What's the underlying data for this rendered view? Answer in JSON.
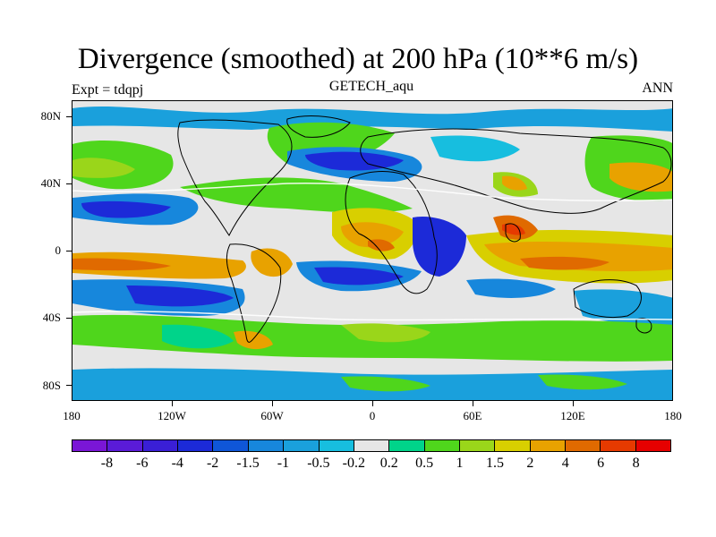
{
  "title": "Divergence (smoothed) at 200 hPa (10**6 m/s)",
  "subtitle": "GETECH_aqu",
  "left_label": "Expt = tdqpj",
  "right_label": "ANN",
  "y_ticks": [
    "80N",
    "40N",
    "0",
    "40S",
    "80S"
  ],
  "x_ticks": [
    "180",
    "120W",
    "60W",
    "0",
    "60E",
    "120E",
    "180"
  ],
  "colorbar": {
    "colors": [
      "#7a16d6",
      "#5a1bd8",
      "#3a1fd6",
      "#1c2ad8",
      "#0f56d8",
      "#1787dc",
      "#1aa0dc",
      "#17bedf",
      "#e6e6e6",
      "#00d48a",
      "#4fd61c",
      "#9ad61a",
      "#d8cf00",
      "#e8a200",
      "#e06a00",
      "#e63a00",
      "#e60000"
    ],
    "labels": [
      "-8",
      "-6",
      "-4",
      "-2",
      "-1.5",
      "-1",
      "-0.5",
      "-0.2",
      "0.2",
      "0.5",
      "1",
      "1.5",
      "2",
      "4",
      "6",
      "8"
    ]
  }
}
